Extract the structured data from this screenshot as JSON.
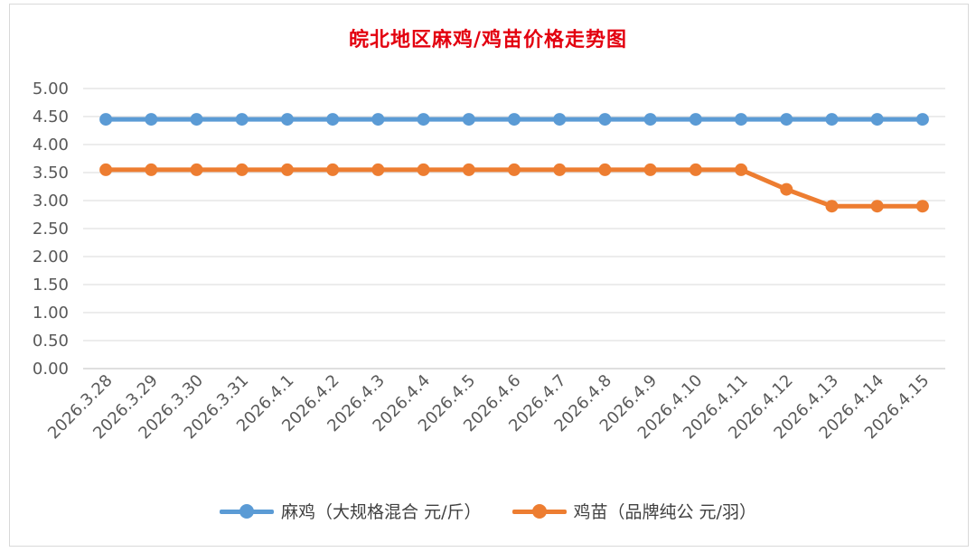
{
  "chart_data": {
    "type": "line",
    "title": "皖北地区麻鸡/鸡苗价格走势图",
    "categories": [
      "2026.3.28",
      "2026.3.29",
      "2026.3.30",
      "2026.3.31",
      "2026.4.1",
      "2026.4.2",
      "2026.4.3",
      "2026.4.4",
      "2026.4.5",
      "2026.4.6",
      "2026.4.7",
      "2026.4.8",
      "2026.4.9",
      "2026.4.10",
      "2026.4.11",
      "2026.4.12",
      "2026.4.13",
      "2026.4.14",
      "2026.4.15"
    ],
    "yticks": [
      "0.00",
      "0.50",
      "1.00",
      "1.50",
      "2.00",
      "2.50",
      "3.00",
      "3.50",
      "4.00",
      "4.50",
      "5.00"
    ],
    "ylim": [
      0,
      5
    ],
    "grid": true,
    "legend_position": "bottom",
    "series": [
      {
        "name": "麻鸡（大规格混合 元/斤）",
        "color": "#5b9bd5",
        "values": [
          4.45,
          4.45,
          4.45,
          4.45,
          4.45,
          4.45,
          4.45,
          4.45,
          4.45,
          4.45,
          4.45,
          4.45,
          4.45,
          4.45,
          4.45,
          4.45,
          4.45,
          4.45,
          4.45
        ]
      },
      {
        "name": "鸡苗（品牌纯公 元/羽）",
        "color": "#ed7d31",
        "values": [
          3.55,
          3.55,
          3.55,
          3.55,
          3.55,
          3.55,
          3.55,
          3.55,
          3.55,
          3.55,
          3.55,
          3.55,
          3.55,
          3.55,
          3.55,
          3.2,
          2.9,
          2.9,
          2.9
        ]
      }
    ]
  }
}
